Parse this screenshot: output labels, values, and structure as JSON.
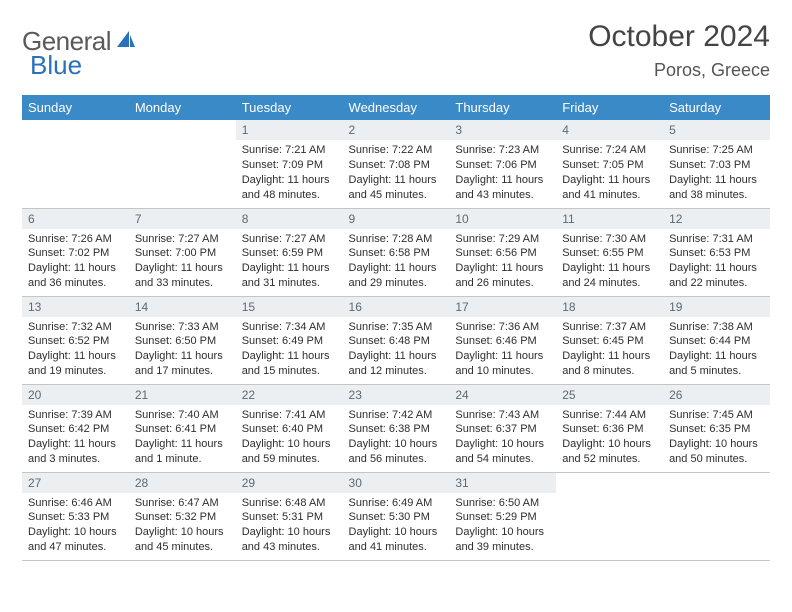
{
  "brand": {
    "part1": "General",
    "part2": "Blue"
  },
  "title": "October 2024",
  "location": "Poros, Greece",
  "colors": {
    "header_bg": "#3a8ac8",
    "header_text": "#ffffff",
    "daynum_bg": "#eceff1",
    "daynum_text": "#5c6a75",
    "body_text": "#2e2e2e",
    "border": "#c5c5c5",
    "page_bg": "#ffffff",
    "brand_gray": "#5a5a5a",
    "brand_blue": "#2a71b8"
  },
  "typography": {
    "title_fontsize": 30,
    "location_fontsize": 18,
    "header_fontsize": 13,
    "daynum_fontsize": 12,
    "body_fontsize": 11
  },
  "weekdays": [
    "Sunday",
    "Monday",
    "Tuesday",
    "Wednesday",
    "Thursday",
    "Friday",
    "Saturday"
  ],
  "weeks": [
    [
      null,
      null,
      {
        "n": "1",
        "sunrise": "Sunrise: 7:21 AM",
        "sunset": "Sunset: 7:09 PM",
        "daylight": "Daylight: 11 hours and 48 minutes."
      },
      {
        "n": "2",
        "sunrise": "Sunrise: 7:22 AM",
        "sunset": "Sunset: 7:08 PM",
        "daylight": "Daylight: 11 hours and 45 minutes."
      },
      {
        "n": "3",
        "sunrise": "Sunrise: 7:23 AM",
        "sunset": "Sunset: 7:06 PM",
        "daylight": "Daylight: 11 hours and 43 minutes."
      },
      {
        "n": "4",
        "sunrise": "Sunrise: 7:24 AM",
        "sunset": "Sunset: 7:05 PM",
        "daylight": "Daylight: 11 hours and 41 minutes."
      },
      {
        "n": "5",
        "sunrise": "Sunrise: 7:25 AM",
        "sunset": "Sunset: 7:03 PM",
        "daylight": "Daylight: 11 hours and 38 minutes."
      }
    ],
    [
      {
        "n": "6",
        "sunrise": "Sunrise: 7:26 AM",
        "sunset": "Sunset: 7:02 PM",
        "daylight": "Daylight: 11 hours and 36 minutes."
      },
      {
        "n": "7",
        "sunrise": "Sunrise: 7:27 AM",
        "sunset": "Sunset: 7:00 PM",
        "daylight": "Daylight: 11 hours and 33 minutes."
      },
      {
        "n": "8",
        "sunrise": "Sunrise: 7:27 AM",
        "sunset": "Sunset: 6:59 PM",
        "daylight": "Daylight: 11 hours and 31 minutes."
      },
      {
        "n": "9",
        "sunrise": "Sunrise: 7:28 AM",
        "sunset": "Sunset: 6:58 PM",
        "daylight": "Daylight: 11 hours and 29 minutes."
      },
      {
        "n": "10",
        "sunrise": "Sunrise: 7:29 AM",
        "sunset": "Sunset: 6:56 PM",
        "daylight": "Daylight: 11 hours and 26 minutes."
      },
      {
        "n": "11",
        "sunrise": "Sunrise: 7:30 AM",
        "sunset": "Sunset: 6:55 PM",
        "daylight": "Daylight: 11 hours and 24 minutes."
      },
      {
        "n": "12",
        "sunrise": "Sunrise: 7:31 AM",
        "sunset": "Sunset: 6:53 PM",
        "daylight": "Daylight: 11 hours and 22 minutes."
      }
    ],
    [
      {
        "n": "13",
        "sunrise": "Sunrise: 7:32 AM",
        "sunset": "Sunset: 6:52 PM",
        "daylight": "Daylight: 11 hours and 19 minutes."
      },
      {
        "n": "14",
        "sunrise": "Sunrise: 7:33 AM",
        "sunset": "Sunset: 6:50 PM",
        "daylight": "Daylight: 11 hours and 17 minutes."
      },
      {
        "n": "15",
        "sunrise": "Sunrise: 7:34 AM",
        "sunset": "Sunset: 6:49 PM",
        "daylight": "Daylight: 11 hours and 15 minutes."
      },
      {
        "n": "16",
        "sunrise": "Sunrise: 7:35 AM",
        "sunset": "Sunset: 6:48 PM",
        "daylight": "Daylight: 11 hours and 12 minutes."
      },
      {
        "n": "17",
        "sunrise": "Sunrise: 7:36 AM",
        "sunset": "Sunset: 6:46 PM",
        "daylight": "Daylight: 11 hours and 10 minutes."
      },
      {
        "n": "18",
        "sunrise": "Sunrise: 7:37 AM",
        "sunset": "Sunset: 6:45 PM",
        "daylight": "Daylight: 11 hours and 8 minutes."
      },
      {
        "n": "19",
        "sunrise": "Sunrise: 7:38 AM",
        "sunset": "Sunset: 6:44 PM",
        "daylight": "Daylight: 11 hours and 5 minutes."
      }
    ],
    [
      {
        "n": "20",
        "sunrise": "Sunrise: 7:39 AM",
        "sunset": "Sunset: 6:42 PM",
        "daylight": "Daylight: 11 hours and 3 minutes."
      },
      {
        "n": "21",
        "sunrise": "Sunrise: 7:40 AM",
        "sunset": "Sunset: 6:41 PM",
        "daylight": "Daylight: 11 hours and 1 minute."
      },
      {
        "n": "22",
        "sunrise": "Sunrise: 7:41 AM",
        "sunset": "Sunset: 6:40 PM",
        "daylight": "Daylight: 10 hours and 59 minutes."
      },
      {
        "n": "23",
        "sunrise": "Sunrise: 7:42 AM",
        "sunset": "Sunset: 6:38 PM",
        "daylight": "Daylight: 10 hours and 56 minutes."
      },
      {
        "n": "24",
        "sunrise": "Sunrise: 7:43 AM",
        "sunset": "Sunset: 6:37 PM",
        "daylight": "Daylight: 10 hours and 54 minutes."
      },
      {
        "n": "25",
        "sunrise": "Sunrise: 7:44 AM",
        "sunset": "Sunset: 6:36 PM",
        "daylight": "Daylight: 10 hours and 52 minutes."
      },
      {
        "n": "26",
        "sunrise": "Sunrise: 7:45 AM",
        "sunset": "Sunset: 6:35 PM",
        "daylight": "Daylight: 10 hours and 50 minutes."
      }
    ],
    [
      {
        "n": "27",
        "sunrise": "Sunrise: 6:46 AM",
        "sunset": "Sunset: 5:33 PM",
        "daylight": "Daylight: 10 hours and 47 minutes."
      },
      {
        "n": "28",
        "sunrise": "Sunrise: 6:47 AM",
        "sunset": "Sunset: 5:32 PM",
        "daylight": "Daylight: 10 hours and 45 minutes."
      },
      {
        "n": "29",
        "sunrise": "Sunrise: 6:48 AM",
        "sunset": "Sunset: 5:31 PM",
        "daylight": "Daylight: 10 hours and 43 minutes."
      },
      {
        "n": "30",
        "sunrise": "Sunrise: 6:49 AM",
        "sunset": "Sunset: 5:30 PM",
        "daylight": "Daylight: 10 hours and 41 minutes."
      },
      {
        "n": "31",
        "sunrise": "Sunrise: 6:50 AM",
        "sunset": "Sunset: 5:29 PM",
        "daylight": "Daylight: 10 hours and 39 minutes."
      },
      null,
      null
    ]
  ]
}
